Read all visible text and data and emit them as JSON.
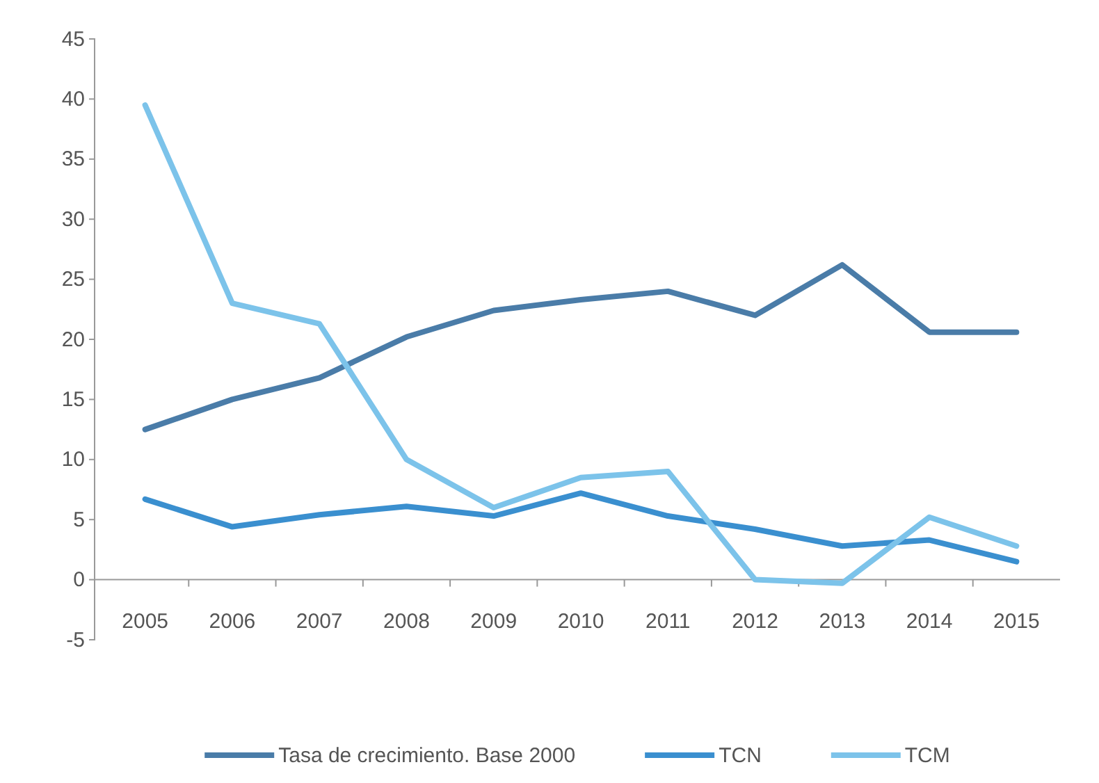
{
  "chart_data": {
    "type": "line",
    "categories": [
      "2005",
      "2006",
      "2007",
      "2008",
      "2009",
      "2010",
      "2011",
      "2012",
      "2013",
      "2014",
      "2015"
    ],
    "series": [
      {
        "name": "Tasa de crecimiento. Base 2000",
        "color": "#4a7ca8",
        "values": [
          12.5,
          15,
          16.8,
          20.2,
          22.4,
          23.3,
          24,
          22,
          26.2,
          20.6,
          20.6
        ]
      },
      {
        "name": "TCN",
        "color": "#3a8fcf",
        "values": [
          6.7,
          4.4,
          5.4,
          6.1,
          5.3,
          7.2,
          5.3,
          4.2,
          2.8,
          3.3,
          1.5
        ]
      },
      {
        "name": "TCM",
        "color": "#7cc3ea",
        "values": [
          39.5,
          23,
          21.3,
          10,
          6,
          8.5,
          9,
          0,
          -0.3,
          5.2,
          2.8
        ]
      }
    ],
    "ylim": [
      -5,
      45
    ],
    "yticks": [
      -5,
      0,
      5,
      10,
      15,
      20,
      25,
      30,
      35,
      40,
      45
    ],
    "grid": false,
    "legend": "bottom",
    "marker": "none",
    "line_style": "solid"
  }
}
